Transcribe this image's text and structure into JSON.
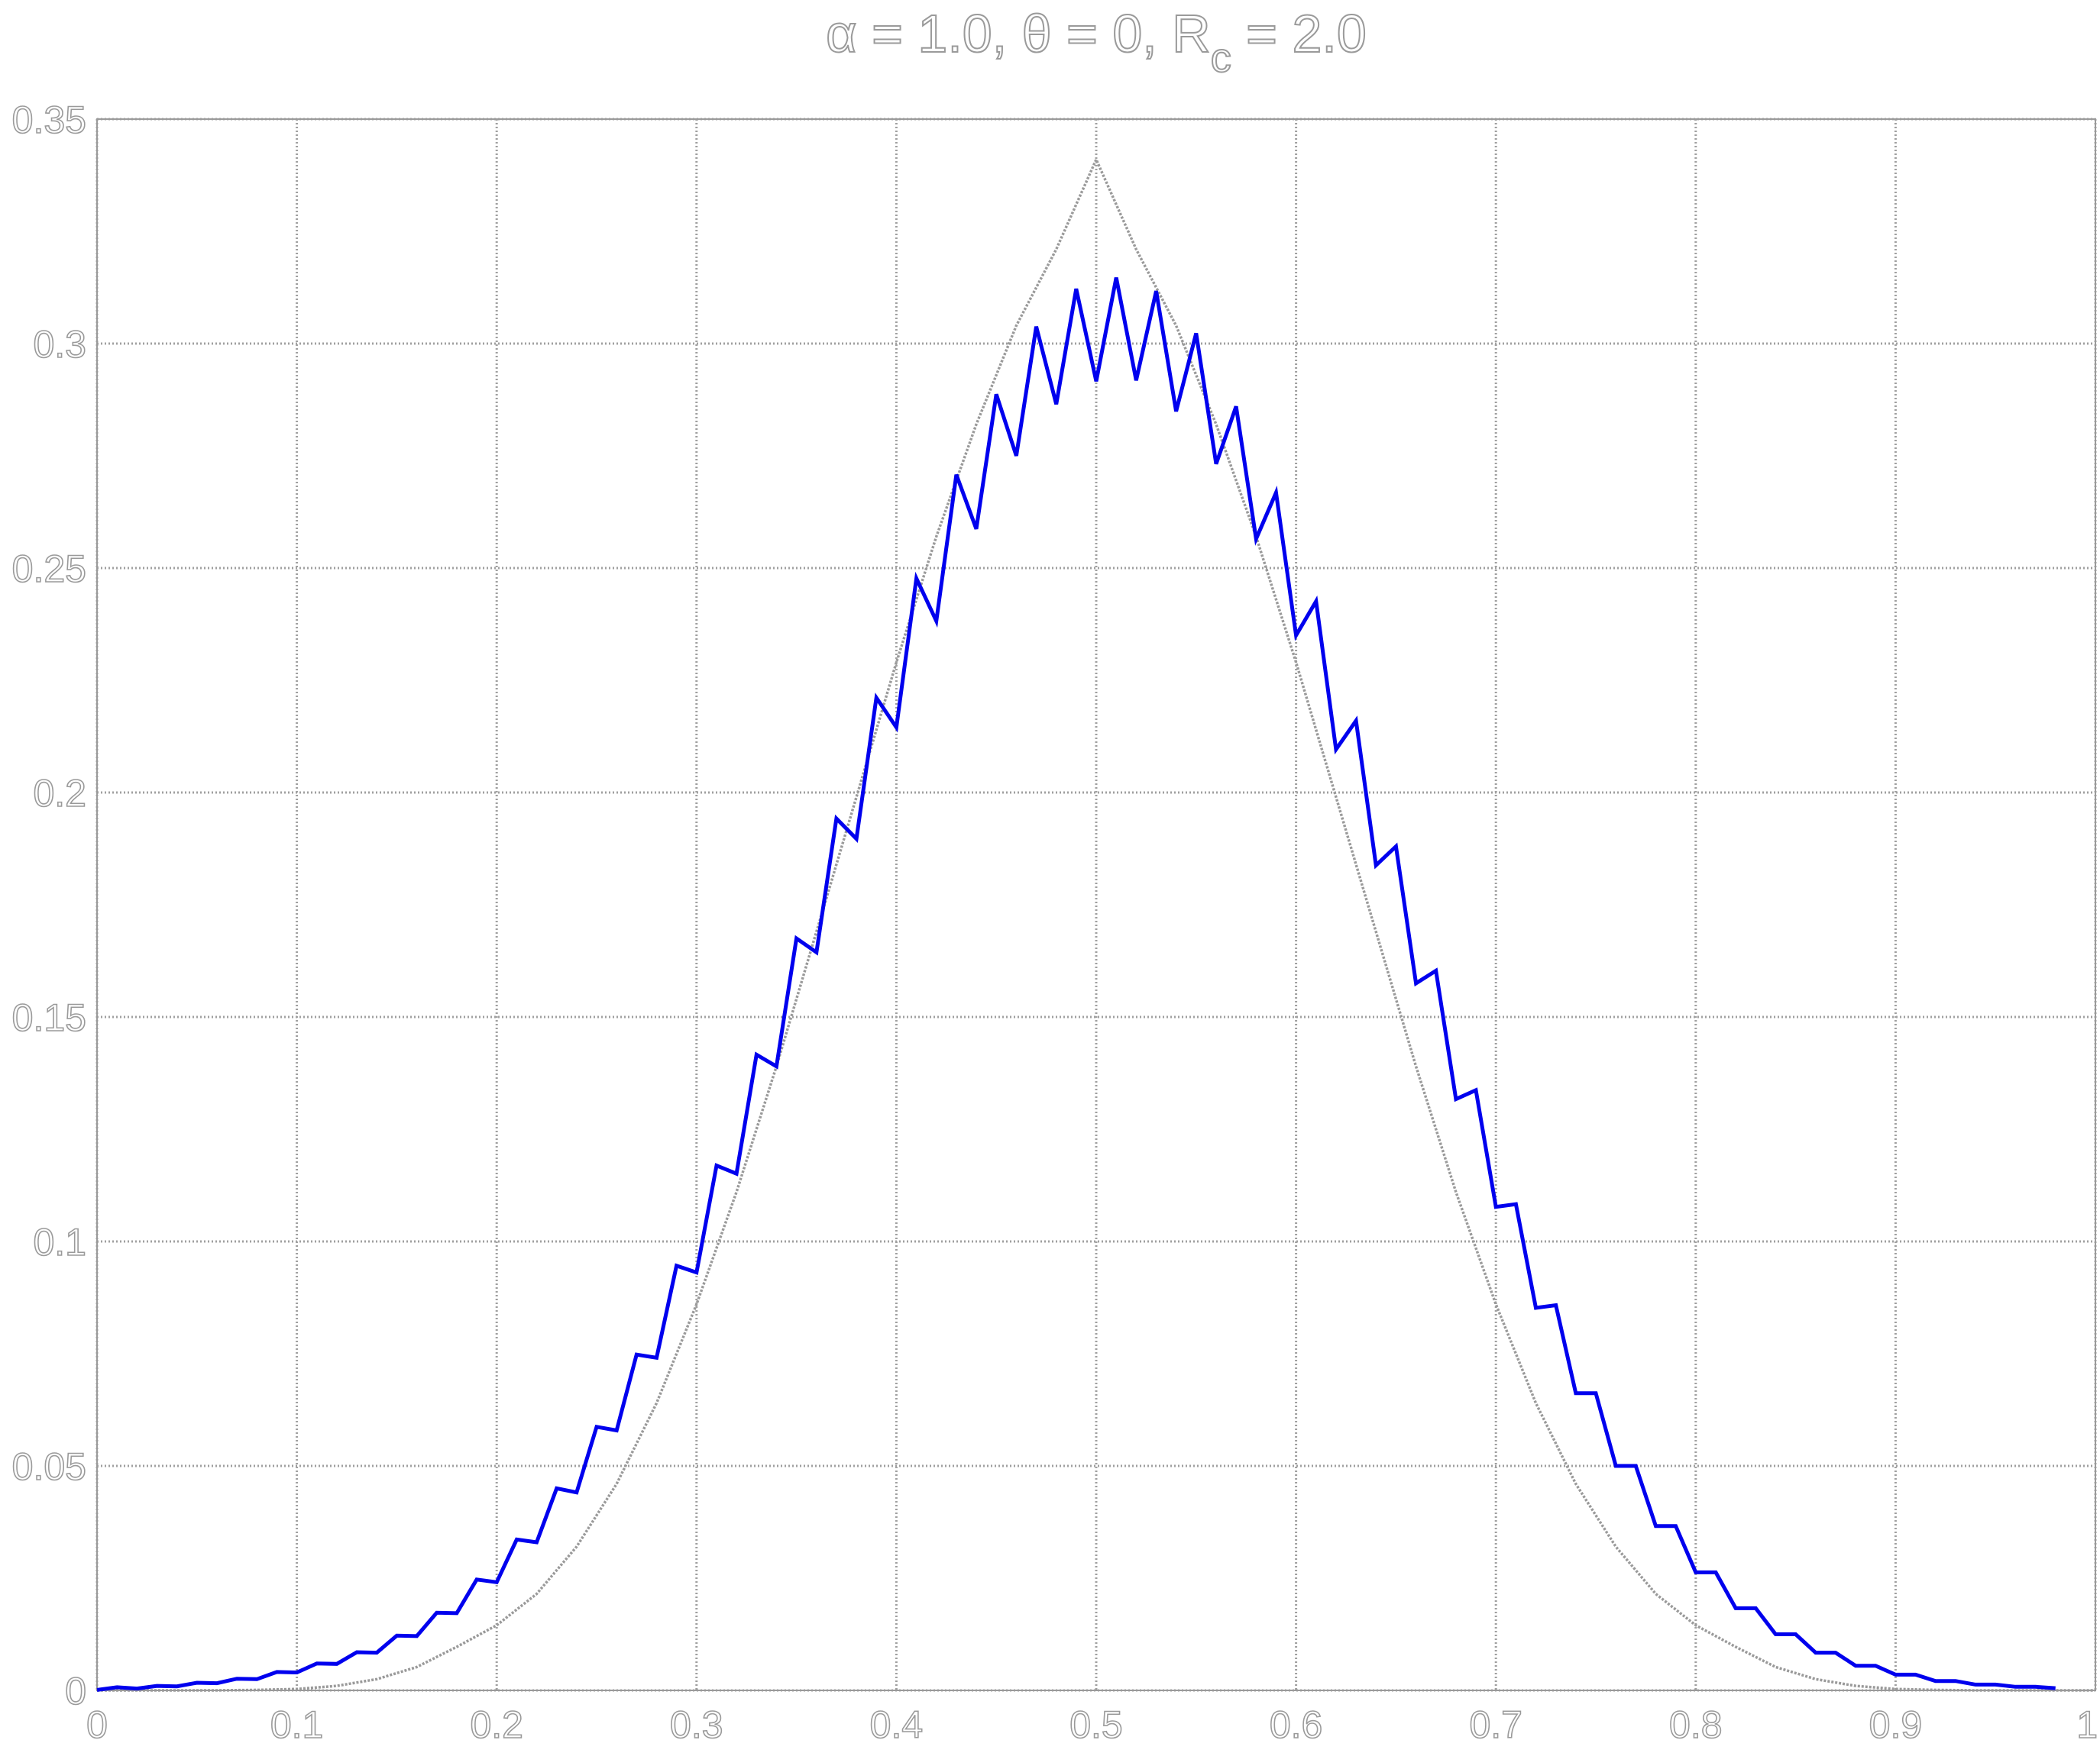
{
  "chart_data": {
    "type": "line",
    "title": {
      "pre": "α = 1.0, θ = 0, R",
      "sub": "c",
      "post": " = 2.0"
    },
    "xlabel": "",
    "ylabel": "",
    "xlim": [
      0,
      1
    ],
    "ylim": [
      0,
      0.35
    ],
    "grid": true,
    "xticks": [
      "0",
      "0.1",
      "0.2",
      "0.3",
      "0.4",
      "0.5",
      "0.6",
      "0.7",
      "0.8",
      "0.9",
      "1"
    ],
    "yticks": [
      "0",
      "0.05",
      "0.1",
      "0.15",
      "0.2",
      "0.25",
      "0.3",
      "0.35"
    ],
    "series": [
      {
        "color": "#0000ee",
        "style": "solid",
        "x": [
          0.0,
          0.01,
          0.02,
          0.03,
          0.04,
          0.05,
          0.06,
          0.07,
          0.08,
          0.09,
          0.1,
          0.11,
          0.12,
          0.13,
          0.14,
          0.15,
          0.16,
          0.17,
          0.18,
          0.19,
          0.2,
          0.21,
          0.22,
          0.23,
          0.24,
          0.25,
          0.26,
          0.27,
          0.28,
          0.29,
          0.3,
          0.31,
          0.32,
          0.33,
          0.34,
          0.35,
          0.36,
          0.37,
          0.38,
          0.39,
          0.4,
          0.41,
          0.42,
          0.43,
          0.44,
          0.45,
          0.46,
          0.47,
          0.48,
          0.49,
          0.5,
          0.51,
          0.52,
          0.53,
          0.54,
          0.55,
          0.56,
          0.57,
          0.58,
          0.59,
          0.6,
          0.61,
          0.62,
          0.63,
          0.64,
          0.65,
          0.66,
          0.67,
          0.68,
          0.69,
          0.7,
          0.71,
          0.72,
          0.73,
          0.74,
          0.75,
          0.76,
          0.77,
          0.78,
          0.79,
          0.8,
          0.81,
          0.82,
          0.83,
          0.84,
          0.85,
          0.86,
          0.87,
          0.88,
          0.89,
          0.9,
          0.91,
          0.92,
          0.93,
          0.94,
          0.95,
          0.96,
          0.97,
          0.98
        ],
        "y": [
          0.0001,
          0.0007,
          0.0004,
          0.001,
          0.0009,
          0.0017,
          0.0016,
          0.0026,
          0.0025,
          0.0041,
          0.004,
          0.006,
          0.0059,
          0.0085,
          0.0084,
          0.0122,
          0.0121,
          0.0173,
          0.0172,
          0.0247,
          0.0241,
          0.0336,
          0.033,
          0.045,
          0.0441,
          0.0587,
          0.0579,
          0.0748,
          0.0741,
          0.0946,
          0.0931,
          0.1169,
          0.1151,
          0.1416,
          0.139,
          0.1675,
          0.1644,
          0.1942,
          0.1897,
          0.2211,
          0.2145,
          0.2477,
          0.2382,
          0.2708,
          0.2587,
          0.2887,
          0.275,
          0.3038,
          0.2865,
          0.3122,
          0.2916,
          0.3147,
          0.2918,
          0.3117,
          0.2849,
          0.3023,
          0.2732,
          0.286,
          0.2565,
          0.2668,
          0.235,
          0.2426,
          0.2096,
          0.216,
          0.1838,
          0.188,
          0.1575,
          0.1603,
          0.1317,
          0.1337,
          0.1077,
          0.1083,
          0.0852,
          0.0858,
          0.0662,
          0.0662,
          0.05,
          0.05,
          0.0366,
          0.0366,
          0.0263,
          0.0263,
          0.0183,
          0.0183,
          0.0125,
          0.0125,
          0.0084,
          0.0084,
          0.0055,
          0.0055,
          0.0035,
          0.0035,
          0.0021,
          0.0021,
          0.0013,
          0.0013,
          0.0008,
          0.0008,
          0.0005
        ]
      },
      {
        "color": "#9a9a9a",
        "style": "dotted-smooth",
        "x": [
          0.0,
          0.02,
          0.04,
          0.06,
          0.08,
          0.1,
          0.12,
          0.14,
          0.16,
          0.18,
          0.2,
          0.22,
          0.24,
          0.26,
          0.28,
          0.3,
          0.32,
          0.34,
          0.36,
          0.38,
          0.4,
          0.42,
          0.44,
          0.46,
          0.48,
          0.5,
          0.52,
          0.54,
          0.56,
          0.58,
          0.6,
          0.62,
          0.64,
          0.66,
          0.68,
          0.7,
          0.72,
          0.74,
          0.76,
          0.78,
          0.8,
          0.82,
          0.84,
          0.86,
          0.88,
          0.9,
          0.92,
          0.94,
          0.96,
          0.98,
          1.0
        ],
        "y": [
          0.0,
          0.0,
          0.0,
          0.0,
          0.0001,
          0.0003,
          0.001,
          0.0025,
          0.0052,
          0.0097,
          0.0145,
          0.0215,
          0.032,
          0.046,
          0.064,
          0.086,
          0.111,
          0.139,
          0.169,
          0.199,
          0.229,
          0.257,
          0.282,
          0.304,
          0.321,
          0.341,
          0.321,
          0.304,
          0.282,
          0.257,
          0.229,
          0.199,
          0.169,
          0.139,
          0.111,
          0.086,
          0.064,
          0.046,
          0.032,
          0.0215,
          0.0145,
          0.0097,
          0.0052,
          0.0025,
          0.001,
          0.0003,
          0.0001,
          0.0,
          0.0,
          0.0,
          0.0
        ]
      }
    ]
  }
}
